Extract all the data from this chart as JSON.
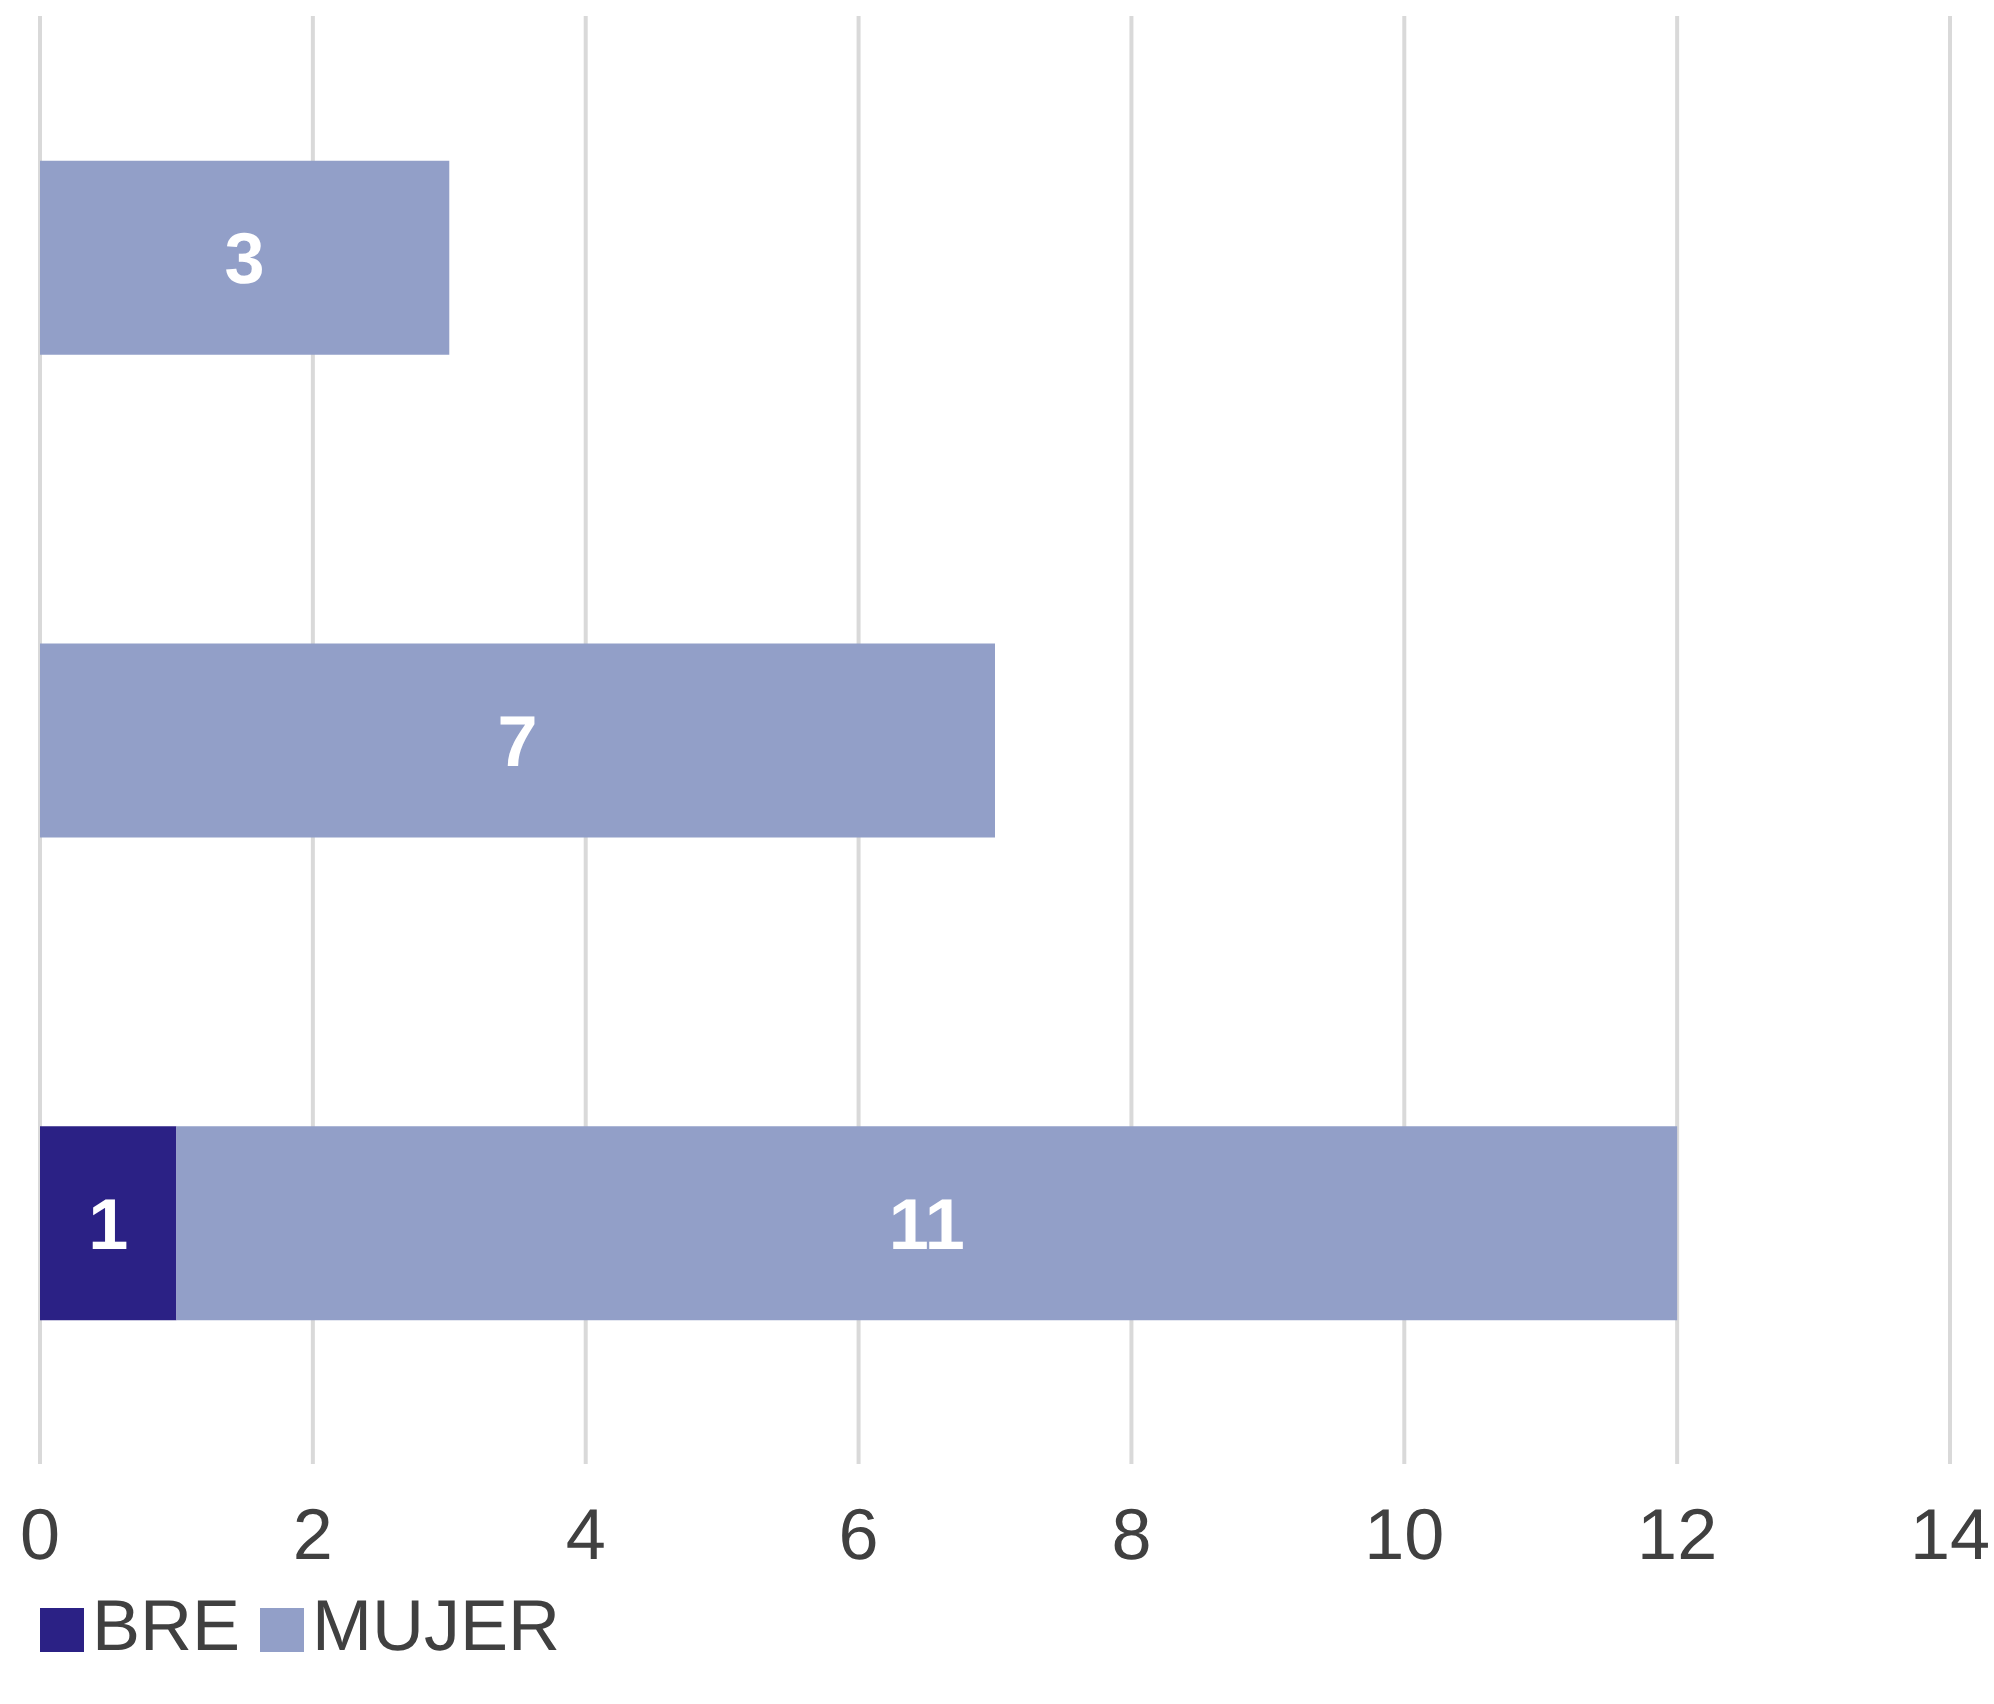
{
  "chart_data": {
    "type": "bar",
    "orientation": "horizontal",
    "stacked": true,
    "categories": [
      null,
      null,
      null
    ],
    "series": [
      {
        "name": "BRE",
        "color": "#2b2185",
        "values": [
          null,
          null,
          1
        ]
      },
      {
        "name": "MUJER",
        "color": "#929fc8",
        "values": [
          3,
          7,
          11
        ]
      }
    ],
    "xlim": [
      0,
      14
    ],
    "xticks": [
      0,
      2,
      4,
      6,
      8,
      10,
      12,
      14
    ],
    "grid": "x",
    "legend": "bottom",
    "data_labels": true
  }
}
